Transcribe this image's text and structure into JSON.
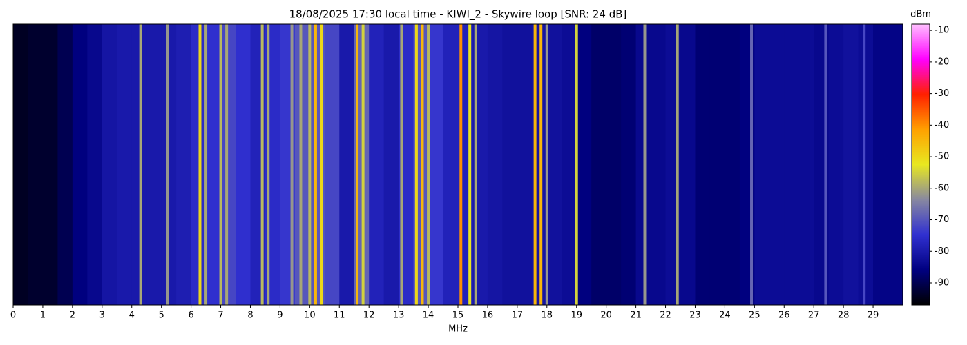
{
  "chart_data": {
    "type": "waterfall",
    "title": "18/08/2025 17:30 local time - KIWI_2 - Skywire loop [SNR: 24 dB]",
    "xlabel": "MHz",
    "colorbar_label": "dBm",
    "xlim": [
      0,
      30
    ],
    "xticks": [
      0,
      1,
      2,
      3,
      4,
      5,
      6,
      7,
      8,
      9,
      10,
      11,
      12,
      13,
      14,
      15,
      16,
      17,
      18,
      19,
      20,
      21,
      22,
      23,
      24,
      25,
      26,
      27,
      28,
      29
    ],
    "clim": [
      -97,
      -8
    ],
    "cticks": [
      -90,
      -80,
      -70,
      -60,
      -50,
      -40,
      -30,
      -20,
      -10
    ],
    "colormap": [
      "#000000",
      "#000080",
      "#3030d0",
      "#8888a0",
      "#e8e820",
      "#ffa000",
      "#ff2000",
      "#ff00ff",
      "#ffc0ff"
    ],
    "background": {
      "x": [
        0,
        0.5,
        1,
        1.5,
        2,
        2.5,
        3,
        3.5,
        4,
        4.5,
        5,
        5.5,
        6,
        6.5,
        7,
        7.5,
        8,
        8.5,
        9,
        9.5,
        10,
        10.5,
        11,
        11.5,
        12,
        12.5,
        13,
        13.5,
        14,
        14.5,
        15,
        15.5,
        16,
        16.5,
        17,
        17.5,
        18,
        18.5,
        19,
        19.5,
        20,
        20.5,
        21,
        21.5,
        22,
        22.5,
        23,
        23.5,
        24,
        24.5,
        25,
        25.5,
        26,
        26.5,
        27,
        27.5,
        28,
        28.5,
        29,
        29.5
      ],
      "values": [
        -94,
        -93,
        -93,
        -90,
        -86,
        -84,
        -81,
        -80,
        -80,
        -80,
        -80,
        -79,
        -76,
        -75,
        -72,
        -75,
        -78,
        -76,
        -74,
        -70,
        -70,
        -72,
        -80,
        -68,
        -78,
        -80,
        -76,
        -70,
        -74,
        -78,
        -78,
        -80,
        -81,
        -82,
        -82,
        -81,
        -82,
        -83,
        -86,
        -88,
        -88,
        -87,
        -84,
        -84,
        -83,
        -84,
        -87,
        -87,
        -87,
        -86,
        -83,
        -83,
        -83,
        -83,
        -84,
        -83,
        -82,
        -83,
        -85,
        -85
      ]
    },
    "carriers": {
      "x": [
        4.3,
        5.2,
        6.3,
        6.5,
        7.0,
        7.2,
        8.4,
        8.6,
        9.4,
        9.7,
        10.0,
        10.2,
        10.4,
        11.6,
        11.8,
        13.1,
        13.6,
        13.8,
        14.0,
        15.1,
        15.4,
        15.6,
        17.6,
        17.8,
        18.0,
        19.0,
        21.3,
        22.4,
        24.9,
        27.4,
        28.7
      ],
      "values": [
        -60,
        -62,
        -50,
        -60,
        -58,
        -60,
        -58,
        -60,
        -62,
        -60,
        -58,
        -45,
        -50,
        -45,
        -55,
        -60,
        -50,
        -45,
        -58,
        -40,
        -52,
        -60,
        -45,
        -45,
        -62,
        -55,
        -62,
        -60,
        -68,
        -70,
        -72
      ]
    }
  }
}
